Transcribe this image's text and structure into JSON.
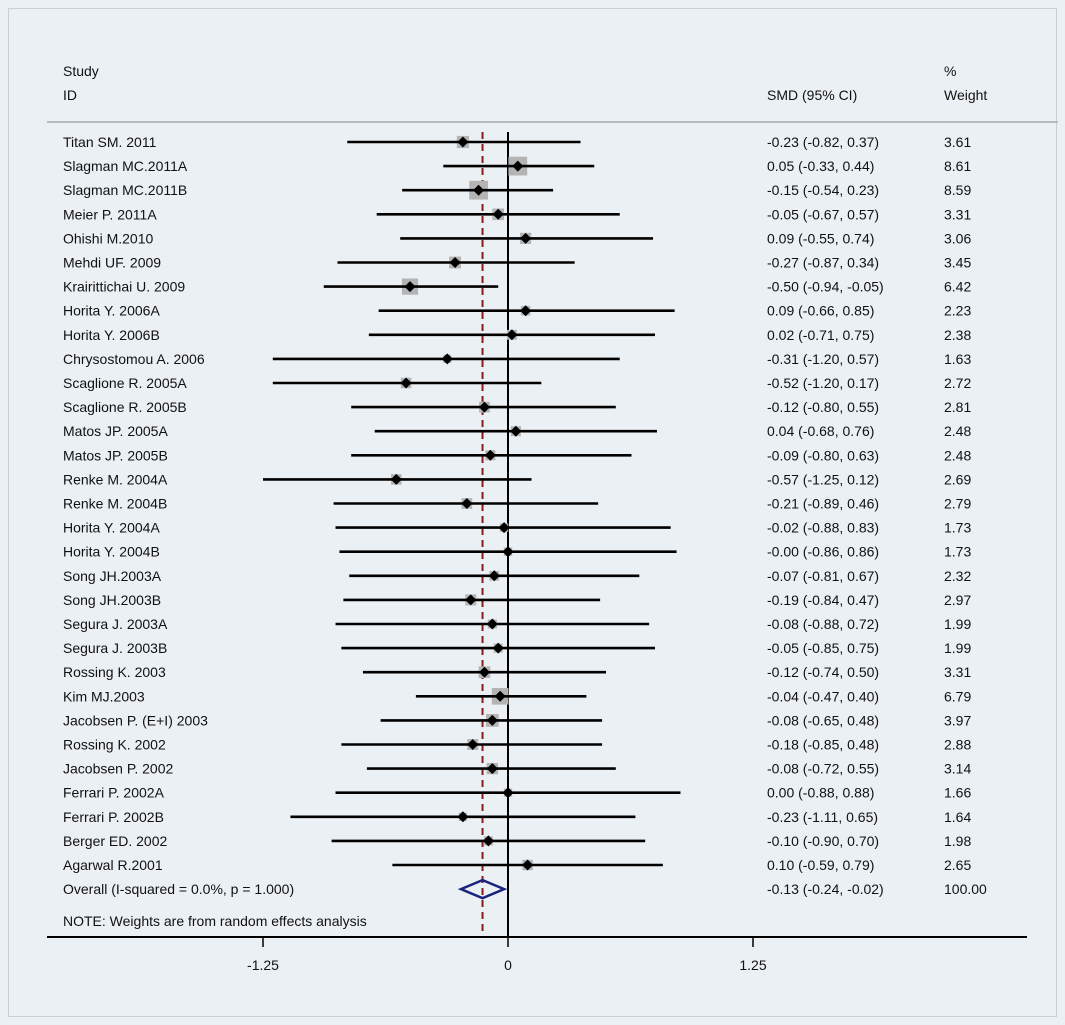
{
  "chart_data": {
    "type": "forest",
    "headers": {
      "study_line1": "Study",
      "study_line2": "ID",
      "effect": "SMD (95% CI)",
      "weight_line1": "%",
      "weight_line2": "Weight"
    },
    "x_ticks": [
      -1.25,
      0,
      1.25
    ],
    "x_tick_labels": [
      "-1.25",
      "0",
      "1.25"
    ],
    "xlim": [
      -2.24,
      2.64
    ],
    "studies": [
      {
        "id": "Titan SM. 2011",
        "smd": -0.23,
        "lo": -0.82,
        "hi": 0.37,
        "ci_text": "-0.23 (-0.82, 0.37)",
        "weight": 3.61,
        "weight_text": "3.61"
      },
      {
        "id": "Slagman MC.2011A",
        "smd": 0.05,
        "lo": -0.33,
        "hi": 0.44,
        "ci_text": "0.05 (-0.33, 0.44)",
        "weight": 8.61,
        "weight_text": "8.61"
      },
      {
        "id": "Slagman MC.2011B",
        "smd": -0.15,
        "lo": -0.54,
        "hi": 0.23,
        "ci_text": "-0.15 (-0.54, 0.23)",
        "weight": 8.59,
        "weight_text": "8.59"
      },
      {
        "id": "Meier P. 2011A",
        "smd": -0.05,
        "lo": -0.67,
        "hi": 0.57,
        "ci_text": "-0.05 (-0.67, 0.57)",
        "weight": 3.31,
        "weight_text": "3.31"
      },
      {
        "id": "Ohishi M.2010",
        "smd": 0.09,
        "lo": -0.55,
        "hi": 0.74,
        "ci_text": "0.09 (-0.55, 0.74)",
        "weight": 3.06,
        "weight_text": "3.06"
      },
      {
        "id": "Mehdi UF. 2009",
        "smd": -0.27,
        "lo": -0.87,
        "hi": 0.34,
        "ci_text": "-0.27 (-0.87, 0.34)",
        "weight": 3.45,
        "weight_text": "3.45"
      },
      {
        "id": "Krairittichai U. 2009",
        "smd": -0.5,
        "lo": -0.94,
        "hi": -0.05,
        "ci_text": "-0.50 (-0.94, -0.05)",
        "weight": 6.42,
        "weight_text": "6.42"
      },
      {
        "id": "Horita Y. 2006A",
        "smd": 0.09,
        "lo": -0.66,
        "hi": 0.85,
        "ci_text": "0.09 (-0.66, 0.85)",
        "weight": 2.23,
        "weight_text": "2.23"
      },
      {
        "id": "Horita Y. 2006B",
        "smd": 0.02,
        "lo": -0.71,
        "hi": 0.75,
        "ci_text": "0.02 (-0.71, 0.75)",
        "weight": 2.38,
        "weight_text": "2.38"
      },
      {
        "id": "Chrysostomou A. 2006",
        "smd": -0.31,
        "lo": -1.2,
        "hi": 0.57,
        "ci_text": "-0.31 (-1.20, 0.57)",
        "weight": 1.63,
        "weight_text": "1.63"
      },
      {
        "id": "Scaglione R. 2005A",
        "smd": -0.52,
        "lo": -1.2,
        "hi": 0.17,
        "ci_text": "-0.52 (-1.20, 0.17)",
        "weight": 2.72,
        "weight_text": "2.72"
      },
      {
        "id": "Scaglione R. 2005B",
        "smd": -0.12,
        "lo": -0.8,
        "hi": 0.55,
        "ci_text": "-0.12 (-0.80, 0.55)",
        "weight": 2.81,
        "weight_text": "2.81"
      },
      {
        "id": "Matos JP. 2005A",
        "smd": 0.04,
        "lo": -0.68,
        "hi": 0.76,
        "ci_text": "0.04 (-0.68, 0.76)",
        "weight": 2.48,
        "weight_text": "2.48"
      },
      {
        "id": "Matos JP. 2005B",
        "smd": -0.09,
        "lo": -0.8,
        "hi": 0.63,
        "ci_text": "-0.09 (-0.80, 0.63)",
        "weight": 2.48,
        "weight_text": "2.48"
      },
      {
        "id": "Renke M. 2004A",
        "smd": -0.57,
        "lo": -1.25,
        "hi": 0.12,
        "ci_text": "-0.57 (-1.25, 0.12)",
        "weight": 2.69,
        "weight_text": "2.69"
      },
      {
        "id": "Renke M. 2004B",
        "smd": -0.21,
        "lo": -0.89,
        "hi": 0.46,
        "ci_text": "-0.21 (-0.89, 0.46)",
        "weight": 2.79,
        "weight_text": "2.79"
      },
      {
        "id": "Horita Y. 2004A",
        "smd": -0.02,
        "lo": -0.88,
        "hi": 0.83,
        "ci_text": "-0.02 (-0.88, 0.83)",
        "weight": 1.73,
        "weight_text": "1.73"
      },
      {
        "id": "Horita Y. 2004B",
        "smd": -0.0,
        "lo": -0.86,
        "hi": 0.86,
        "ci_text": "-0.00 (-0.86, 0.86)",
        "weight": 1.73,
        "weight_text": "1.73"
      },
      {
        "id": "Song JH.2003A",
        "smd": -0.07,
        "lo": -0.81,
        "hi": 0.67,
        "ci_text": "-0.07 (-0.81, 0.67)",
        "weight": 2.32,
        "weight_text": "2.32"
      },
      {
        "id": "Song JH.2003B",
        "smd": -0.19,
        "lo": -0.84,
        "hi": 0.47,
        "ci_text": "-0.19 (-0.84, 0.47)",
        "weight": 2.97,
        "weight_text": "2.97"
      },
      {
        "id": "Segura J. 2003A",
        "smd": -0.08,
        "lo": -0.88,
        "hi": 0.72,
        "ci_text": "-0.08 (-0.88, 0.72)",
        "weight": 1.99,
        "weight_text": "1.99"
      },
      {
        "id": "Segura J. 2003B",
        "smd": -0.05,
        "lo": -0.85,
        "hi": 0.75,
        "ci_text": "-0.05 (-0.85, 0.75)",
        "weight": 1.99,
        "weight_text": "1.99"
      },
      {
        "id": "Rossing K. 2003",
        "smd": -0.12,
        "lo": -0.74,
        "hi": 0.5,
        "ci_text": "-0.12 (-0.74, 0.50)",
        "weight": 3.31,
        "weight_text": "3.31"
      },
      {
        "id": "Kim MJ.2003",
        "smd": -0.04,
        "lo": -0.47,
        "hi": 0.4,
        "ci_text": "-0.04 (-0.47, 0.40)",
        "weight": 6.79,
        "weight_text": "6.79"
      },
      {
        "id": "Jacobsen P. (E+I) 2003",
        "smd": -0.08,
        "lo": -0.65,
        "hi": 0.48,
        "ci_text": "-0.08 (-0.65, 0.48)",
        "weight": 3.97,
        "weight_text": "3.97"
      },
      {
        "id": "Rossing K. 2002",
        "smd": -0.18,
        "lo": -0.85,
        "hi": 0.48,
        "ci_text": "-0.18 (-0.85, 0.48)",
        "weight": 2.88,
        "weight_text": "2.88"
      },
      {
        "id": "Jacobsen P. 2002",
        "smd": -0.08,
        "lo": -0.72,
        "hi": 0.55,
        "ci_text": "-0.08 (-0.72, 0.55)",
        "weight": 3.14,
        "weight_text": "3.14"
      },
      {
        "id": "Ferrari P. 2002A",
        "smd": 0.0,
        "lo": -0.88,
        "hi": 0.88,
        "ci_text": "0.00 (-0.88, 0.88)",
        "weight": 1.66,
        "weight_text": "1.66"
      },
      {
        "id": "Ferrari P. 2002B",
        "smd": -0.23,
        "lo": -1.11,
        "hi": 0.65,
        "ci_text": "-0.23 (-1.11, 0.65)",
        "weight": 1.64,
        "weight_text": "1.64"
      },
      {
        "id": "Berger ED. 2002",
        "smd": -0.1,
        "lo": -0.9,
        "hi": 0.7,
        "ci_text": "-0.10 (-0.90, 0.70)",
        "weight": 1.98,
        "weight_text": "1.98"
      },
      {
        "id": "Agarwal R.2001",
        "smd": 0.1,
        "lo": -0.59,
        "hi": 0.79,
        "ci_text": "0.10 (-0.59, 0.79)",
        "weight": 2.65,
        "weight_text": "2.65"
      }
    ],
    "overall": {
      "label": "Overall  (I-squared = 0.0%, p = 1.000)",
      "smd": -0.13,
      "lo": -0.24,
      "hi": -0.02,
      "ci_text": "-0.13 (-0.24, -0.02)",
      "weight_text": "100.00"
    },
    "note": "NOTE: Weights are from random effects analysis",
    "colors": {
      "background": "#ebf0f4",
      "marker": "#000000",
      "weight_box": "#b4b4b4",
      "overall_line": "#8b1a1a",
      "diamond": "#1a237e",
      "rule": "#b5bcc2"
    }
  }
}
